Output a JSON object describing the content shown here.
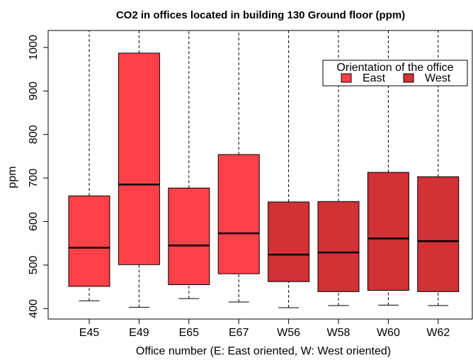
{
  "chart_data": {
    "type": "box",
    "title": "CO2 in offices located in building 130 Ground floor (ppm)",
    "x_label": "Office number (E: East oriented, W: West oriented)",
    "y_label": "ppm",
    "ylim": [
      376,
      1039
    ],
    "yticks": [
      400,
      500,
      600,
      700,
      800,
      900,
      1000
    ],
    "legend": {
      "title": "Orientation of the office",
      "position": "top-right"
    },
    "series": [
      {
        "name": "East",
        "color": "#fe4049",
        "categories": [
          "E45",
          "E49",
          "E65",
          "E67"
        ],
        "low": [
          418,
          403,
          423,
          415
        ],
        "q1": [
          451,
          501,
          455,
          480
        ],
        "median": [
          540,
          685,
          545,
          573
        ],
        "q3": [
          659,
          987,
          677,
          754
        ],
        "high": [
          1039,
          1039,
          1039,
          1039
        ]
      },
      {
        "name": "West",
        "color": "#d03236",
        "categories": [
          "W56",
          "W58",
          "W60",
          "W62"
        ],
        "low": [
          402,
          407,
          408,
          407
        ],
        "q1": [
          462,
          439,
          442,
          439
        ],
        "median": [
          524,
          529,
          561,
          555
        ],
        "q3": [
          645,
          646,
          713,
          703
        ],
        "high": [
          1039,
          1039,
          1039,
          1039
        ]
      }
    ]
  }
}
